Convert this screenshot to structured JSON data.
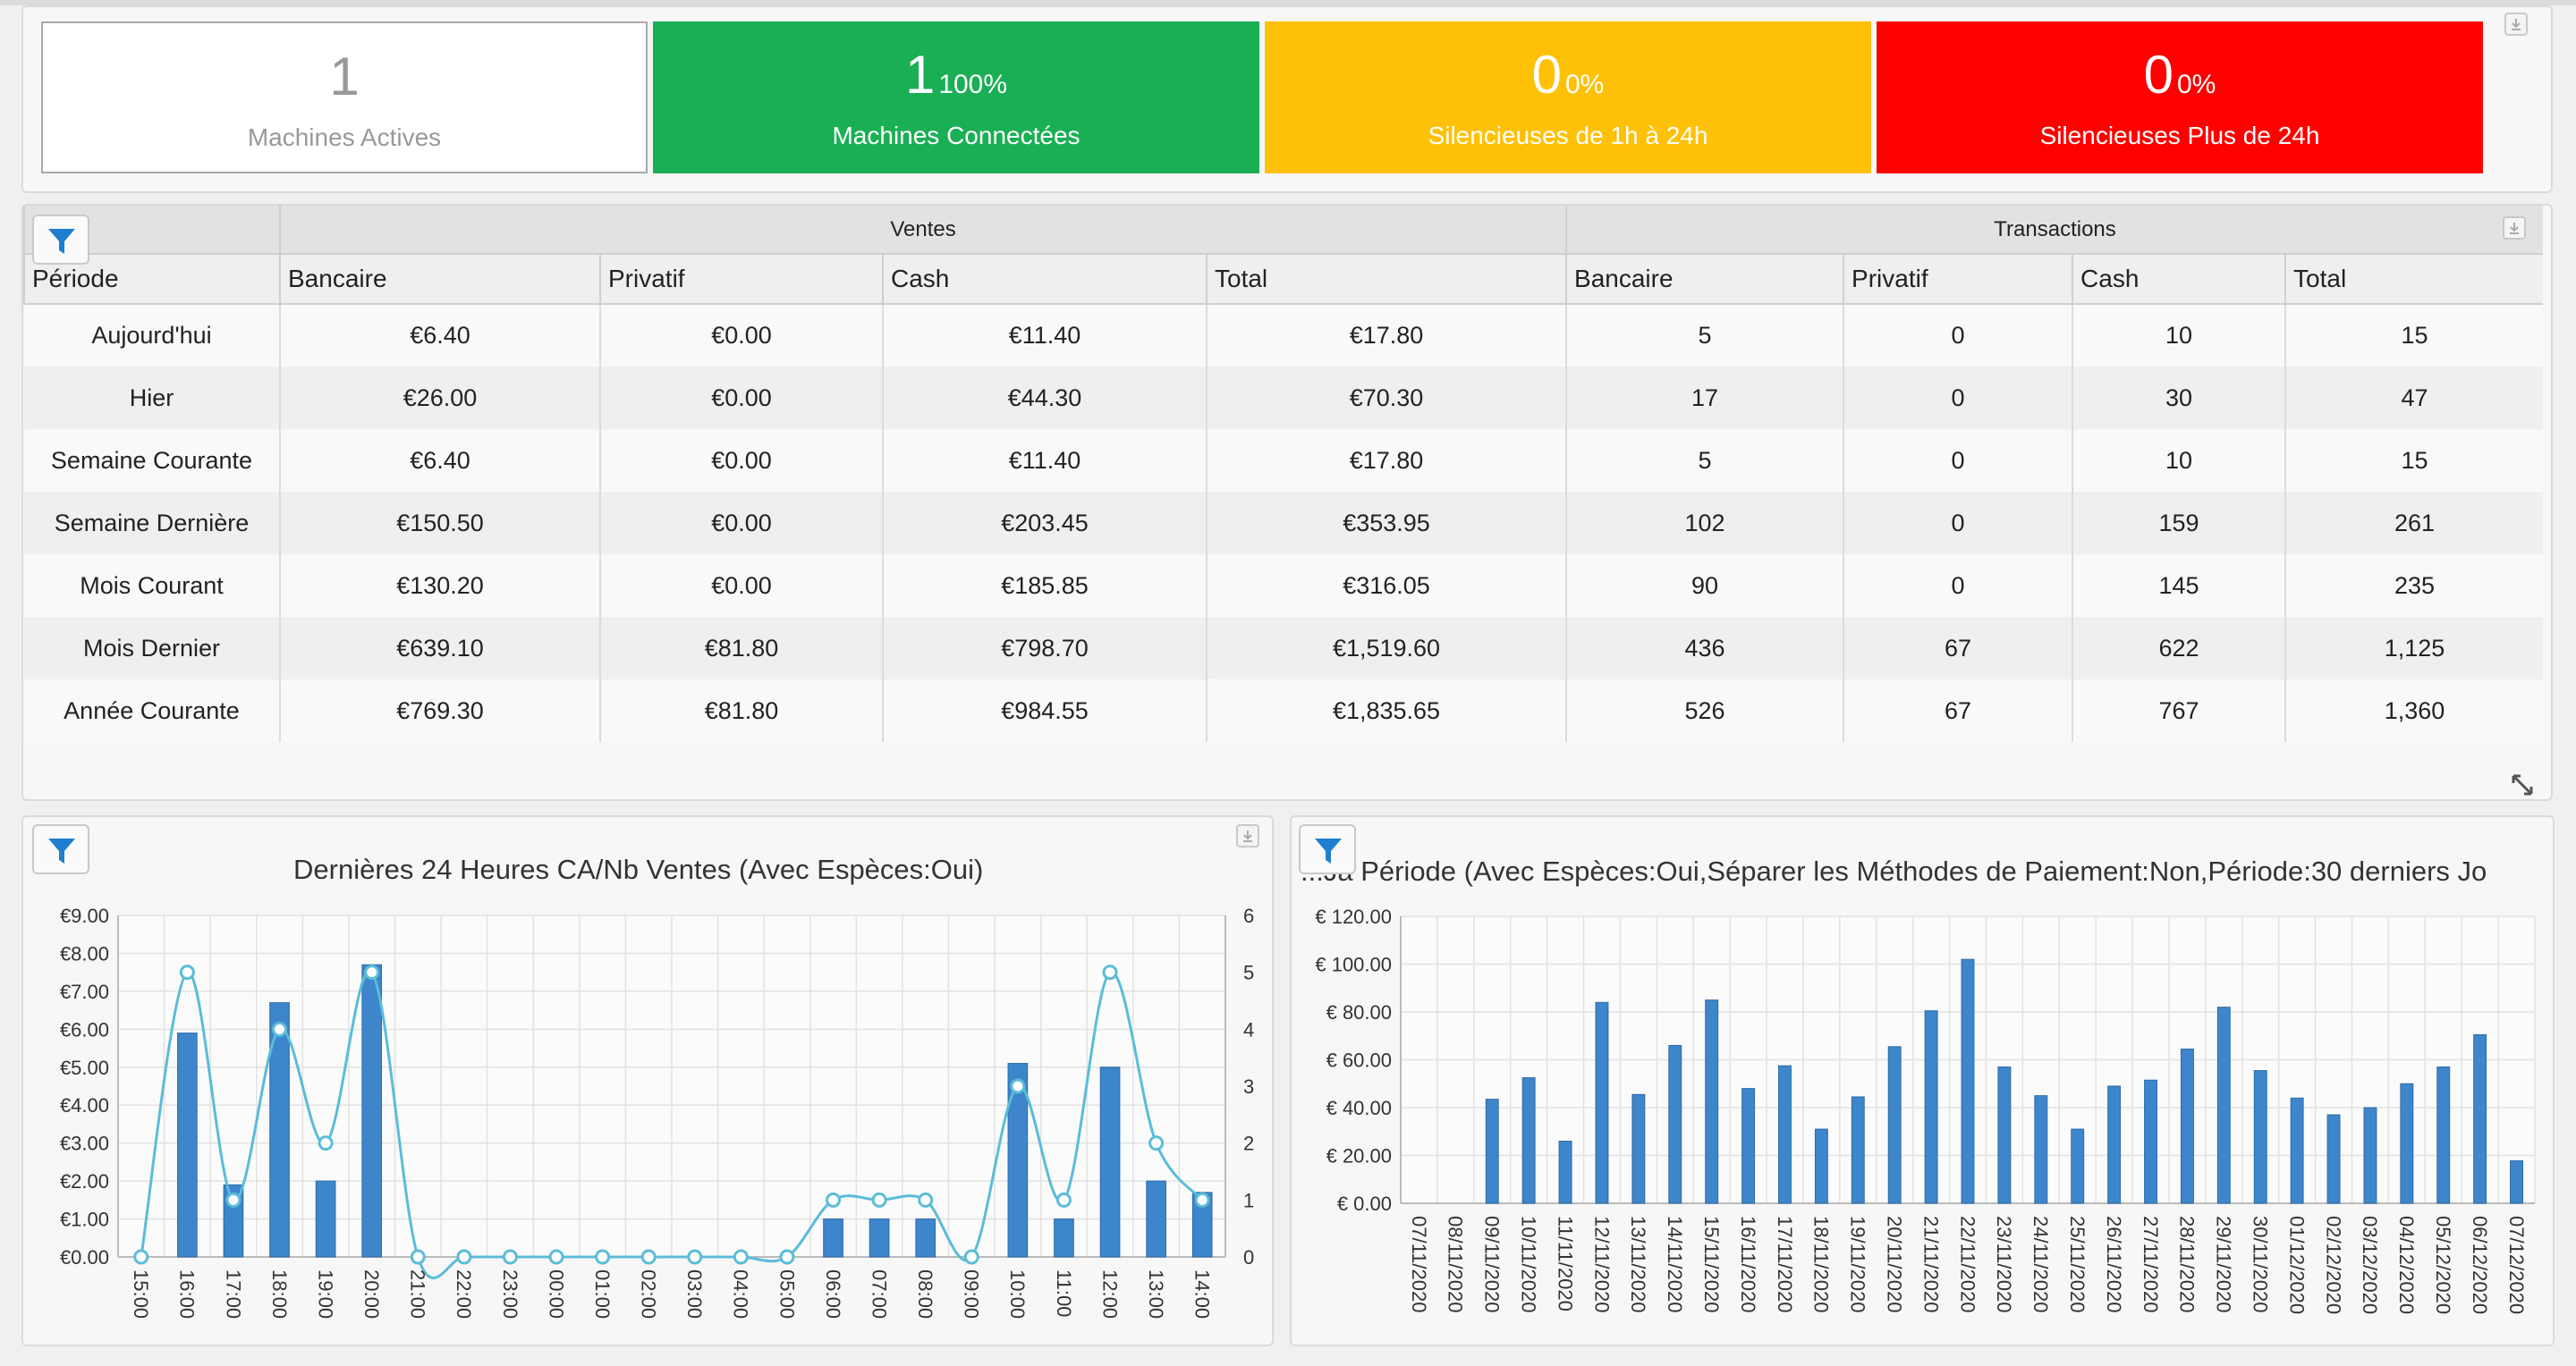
{
  "kpis": [
    {
      "value": "1",
      "percent": "",
      "label": "Machines Actives",
      "color": "#ffffff"
    },
    {
      "value": "1",
      "percent": "100%",
      "label": "Machines Connectées",
      "color": "#1aaf54"
    },
    {
      "value": "0",
      "percent": "0%",
      "label": "Silencieuses de 1h à 24h",
      "color": "#ffc107"
    },
    {
      "value": "0",
      "percent": "0%",
      "label": "Silencieuses Plus de 24h",
      "color": "#ff0000"
    }
  ],
  "stats": {
    "group_ventes": "Ventes",
    "group_transactions": "Transactions",
    "columns": [
      "Période",
      "Bancaire",
      "Privatif",
      "Cash",
      "Total",
      "Bancaire",
      "Privatif",
      "Cash",
      "Total"
    ],
    "rows": [
      [
        "Aujourd'hui",
        "€6.40",
        "€0.00",
        "€11.40",
        "€17.80",
        "5",
        "0",
        "10",
        "15"
      ],
      [
        "Hier",
        "€26.00",
        "€0.00",
        "€44.30",
        "€70.30",
        "17",
        "0",
        "30",
        "47"
      ],
      [
        "Semaine Courante",
        "€6.40",
        "€0.00",
        "€11.40",
        "€17.80",
        "5",
        "0",
        "10",
        "15"
      ],
      [
        "Semaine Dernière",
        "€150.50",
        "€0.00",
        "€203.45",
        "€353.95",
        "102",
        "0",
        "159",
        "261"
      ],
      [
        "Mois Courant",
        "€130.20",
        "€0.00",
        "€185.85",
        "€316.05",
        "90",
        "0",
        "145",
        "235"
      ],
      [
        "Mois Dernier",
        "€639.10",
        "€81.80",
        "€798.70",
        "€1,519.60",
        "436",
        "67",
        "622",
        "1,125"
      ],
      [
        "Année Courante",
        "€769.30",
        "€81.80",
        "€984.55",
        "€1,835.65",
        "526",
        "67",
        "767",
        "1,360"
      ]
    ]
  },
  "chart_data": [
    {
      "type": "bar",
      "title": "Dernières 24 Heures CA/Nb Ventes (Avec Espèces:Oui)",
      "categories": [
        "15:00",
        "16:00",
        "17:00",
        "18:00",
        "19:00",
        "20:00",
        "21:00",
        "22:00",
        "23:00",
        "00:00",
        "01:00",
        "02:00",
        "03:00",
        "04:00",
        "05:00",
        "06:00",
        "07:00",
        "08:00",
        "09:00",
        "10:00",
        "11:00",
        "12:00",
        "13:00",
        "14:00"
      ],
      "series": [
        {
          "type": "bar",
          "axis": "left",
          "color": "#3d86cc",
          "values": [
            0,
            5.9,
            1.9,
            6.7,
            2.0,
            7.7,
            0,
            0,
            0,
            0,
            0,
            0,
            0,
            0,
            0,
            1.0,
            1.0,
            1.0,
            0,
            5.1,
            1.0,
            5.0,
            2.0,
            1.7
          ]
        },
        {
          "type": "line",
          "axis": "right",
          "color": "#5bbcd8",
          "values": [
            0,
            5,
            1,
            4,
            2,
            5,
            0,
            0,
            0,
            0,
            0,
            0,
            0,
            0,
            0,
            1,
            1,
            1,
            0,
            3,
            1,
            5,
            2,
            1
          ]
        }
      ],
      "y_ticks": [
        "€0.00",
        "€1.00",
        "€2.00",
        "€3.00",
        "€4.00",
        "€5.00",
        "€6.00",
        "€7.00",
        "€8.00",
        "€9.00"
      ],
      "ylim": [
        0,
        9
      ],
      "y2_ticks": [
        "0",
        "1",
        "2",
        "3",
        "4",
        "5",
        "6"
      ],
      "y2lim": [
        0,
        6
      ],
      "grid": true
    },
    {
      "type": "bar",
      "title": "...Ja Période (Avec Espèces:Oui,Séparer les Méthodes de Paiement:Non,Période:30 derniers Jo",
      "categories": [
        "07/11/2020",
        "08/11/2020",
        "09/11/2020",
        "10/11/2020",
        "11/11/2020",
        "12/11/2020",
        "13/11/2020",
        "14/11/2020",
        "15/11/2020",
        "16/11/2020",
        "17/11/2020",
        "18/11/2020",
        "19/11/2020",
        "20/11/2020",
        "21/11/2020",
        "22/11/2020",
        "23/11/2020",
        "24/11/2020",
        "25/11/2020",
        "26/11/2020",
        "27/11/2020",
        "28/11/2020",
        "29/11/2020",
        "30/11/2020",
        "01/12/2020",
        "02/12/2020",
        "03/12/2020",
        "04/12/2020",
        "05/12/2020",
        "06/12/2020",
        "07/12/2020"
      ],
      "series": [
        {
          "type": "bar",
          "color": "#3d86cc",
          "values": [
            0,
            0,
            43.5,
            52.5,
            26,
            84,
            45.5,
            66,
            85,
            48,
            57.5,
            31,
            44.5,
            65.5,
            80.5,
            102,
            57,
            45,
            31,
            49,
            51.5,
            64.5,
            82,
            55.5,
            44,
            37,
            40,
            50,
            57,
            70.5,
            17.8
          ]
        }
      ],
      "y_ticks": [
        "€ 0.00",
        "€ 20.00",
        "€ 40.00",
        "€ 60.00",
        "€ 80.00",
        "€ 100.00",
        "€ 120.00"
      ],
      "ylim": [
        0,
        120
      ],
      "grid": true
    }
  ]
}
